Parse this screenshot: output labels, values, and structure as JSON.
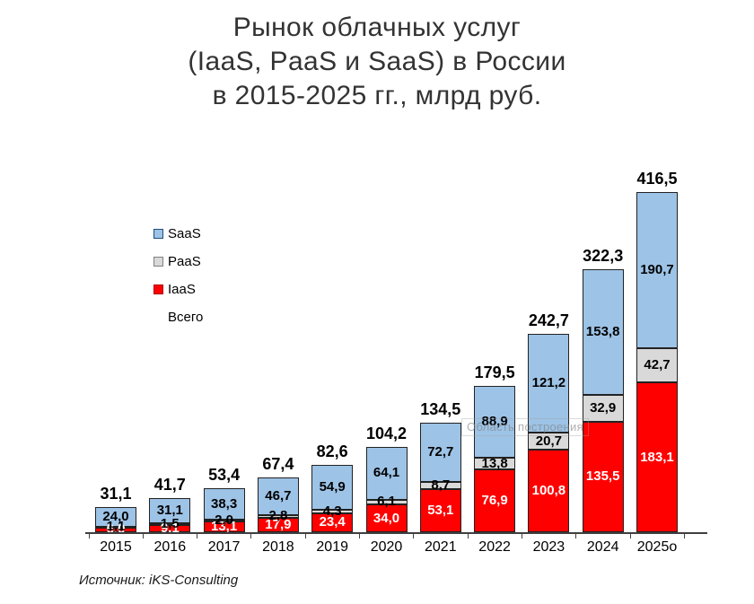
{
  "title": {
    "line1": "Рынок облачных услуг",
    "line2": "(IaaS, PaaS и SaaS) в России",
    "line3": "в 2015-2025 гг., млрд руб."
  },
  "legend": {
    "items": [
      {
        "label": "SaaS",
        "color": "#9DC3E6",
        "border": "#1F4E79"
      },
      {
        "label": "PaaS",
        "color": "#D9D9D9",
        "border": "#808080"
      },
      {
        "label": "IaaS",
        "color": "#FF0000",
        "border": "#B00000"
      },
      {
        "label": "Всего",
        "color": "",
        "border": ""
      }
    ]
  },
  "watermark": "Область построения",
  "source": "Источник: iKS-Consulting",
  "chart_data": {
    "type": "bar",
    "stacked": true,
    "title": "Рынок облачных услуг (IaaS, PaaS и SaaS) в России в 2015-2025 гг., млрд руб.",
    "unit": "млрд руб.",
    "grid": false,
    "legend_position": "upper-left-inside",
    "ylim": [
      0,
      420
    ],
    "categories": [
      "2015",
      "2016",
      "2017",
      "2018",
      "2019",
      "2020",
      "2021",
      "2022",
      "2023",
      "2024",
      "2025о"
    ],
    "series": [
      {
        "name": "IaaS",
        "color": "#FF0000",
        "label_color": "#FFFFFF",
        "values": [
          6.0,
          9.1,
          13.1,
          17.9,
          23.4,
          34.0,
          53.1,
          76.9,
          100.8,
          135.5,
          183.1
        ],
        "labels": [
          "6,0",
          "9,1",
          "13,1",
          "17,9",
          "23,4",
          "34,0",
          "53,1",
          "76,9",
          "100,8",
          "135,5",
          "183,1"
        ]
      },
      {
        "name": "PaaS",
        "color": "#D9D9D9",
        "label_color": "#000000",
        "values": [
          1.1,
          1.5,
          2.0,
          2.8,
          4.3,
          6.1,
          8.7,
          13.8,
          20.7,
          32.9,
          42.7
        ],
        "labels": [
          "1,1",
          "1,5",
          "2,0",
          "2,8",
          "4,3",
          "6,1",
          "8,7",
          "13,8",
          "20,7",
          "32,9",
          "42,7"
        ]
      },
      {
        "name": "SaaS",
        "color": "#9DC3E6",
        "label_color": "#000000",
        "values": [
          24.0,
          31.1,
          38.3,
          46.7,
          54.9,
          64.1,
          72.7,
          88.9,
          121.2,
          153.8,
          190.7
        ],
        "labels": [
          "24,0",
          "31,1",
          "38,3",
          "46,7",
          "54,9",
          "64,1",
          "72,7",
          "88,9",
          "121,2",
          "153,8",
          "190,7"
        ]
      }
    ],
    "totals": {
      "name": "Всего",
      "values": [
        31.1,
        41.7,
        53.4,
        67.4,
        82.6,
        104.2,
        134.5,
        179.5,
        242.7,
        322.3,
        416.5
      ],
      "labels": [
        "31,1",
        "41,7",
        "53,4",
        "67,4",
        "82,6",
        "104,2",
        "134,5",
        "179,5",
        "242,7",
        "322,3",
        "416,5"
      ]
    }
  }
}
